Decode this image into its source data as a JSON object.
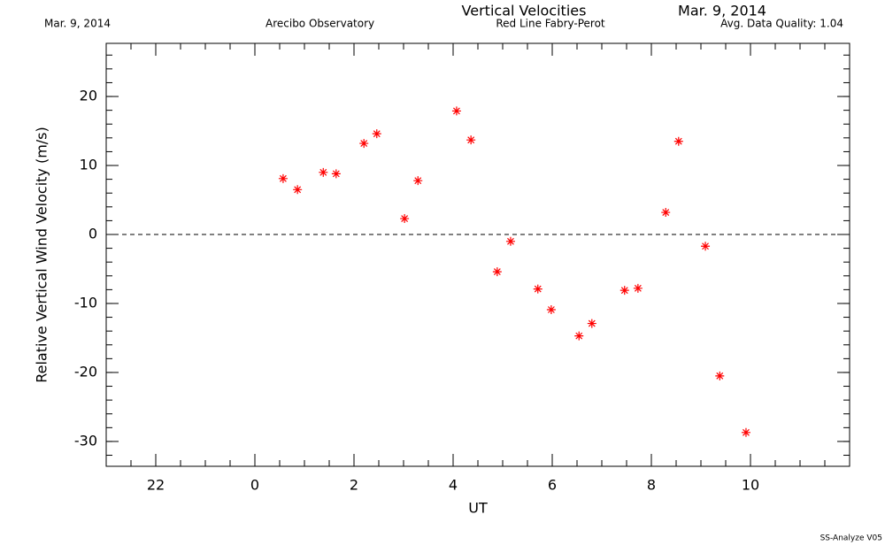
{
  "header": {
    "date_left": "Mar. 9, 2014",
    "site": "Arecibo Observatory",
    "instrument": "Red Line Fabry-Perot",
    "date_right": "Mar. 9, 2014",
    "quality": "Avg. Data Quality: 1.04"
  },
  "footer": "SS-Analyze V05",
  "chart_data": {
    "type": "scatter",
    "title": "Vertical Velocities",
    "xlabel": "UT",
    "ylabel": "Relative Vertical Wind Velocity (m/s)",
    "color": "#ff0000",
    "hline": 0,
    "x": [
      0.57,
      0.86,
      1.38,
      1.64,
      2.2,
      2.46,
      3.02,
      3.29,
      4.07,
      4.36,
      4.89,
      5.16,
      5.71,
      5.98,
      6.54,
      6.8,
      7.46,
      7.73,
      8.29,
      8.55,
      9.09,
      9.38,
      9.91
    ],
    "values": [
      8.1,
      6.5,
      9.0,
      8.8,
      13.2,
      14.6,
      2.3,
      7.8,
      17.9,
      13.7,
      -5.4,
      -1.0,
      -7.9,
      -10.9,
      -14.7,
      -12.9,
      -8.1,
      -7.8,
      3.2,
      13.5,
      -1.7,
      -20.5,
      -28.7
    ],
    "xlim": [
      -3,
      12
    ],
    "xticks": [
      {
        "value": -2,
        "label": "22"
      },
      0,
      2,
      4,
      6,
      8,
      10
    ],
    "ylim": [
      -33.6,
      27.7
    ],
    "yticks": [
      -30,
      -20,
      -10,
      0,
      10,
      20
    ]
  }
}
